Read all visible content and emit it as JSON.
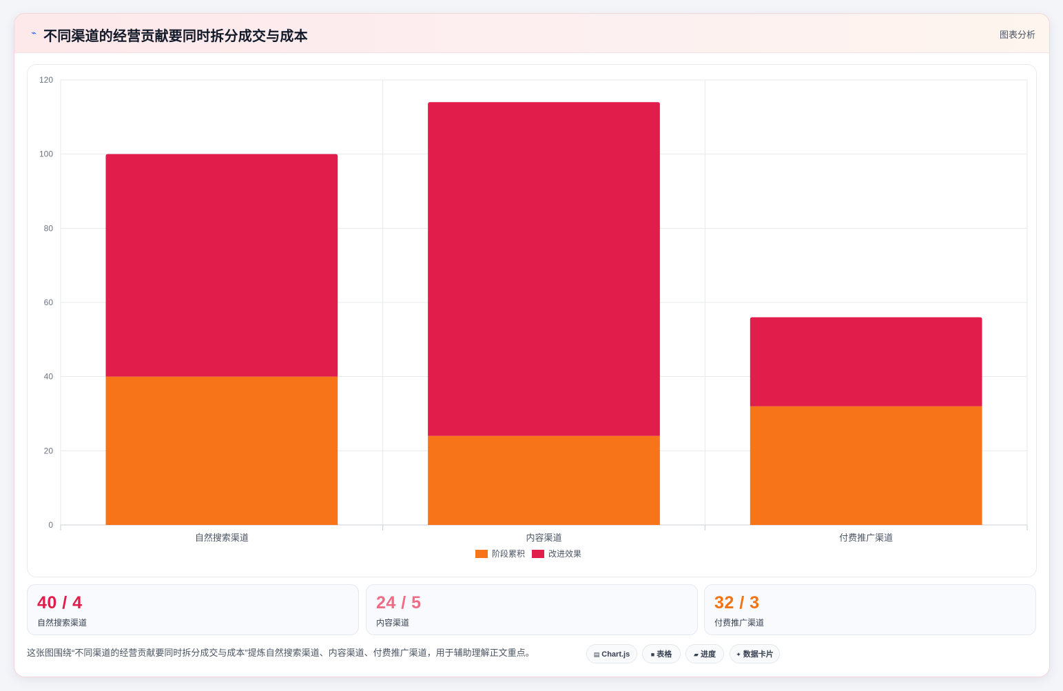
{
  "header": {
    "icon": "pulse-icon",
    "title": "不同渠道的经营贡献要同时拆分成交与成本",
    "tag": "图表分析"
  },
  "chart_data": {
    "type": "bar",
    "stacked": true,
    "categories": [
      "自然搜索渠道",
      "内容渠道",
      "付费推广渠道"
    ],
    "series": [
      {
        "name": "阶段累积",
        "values": [
          40,
          24,
          32
        ],
        "color": "#f77518"
      },
      {
        "name": "改进效果",
        "values": [
          60,
          90,
          24
        ],
        "color": "#e01d4b"
      }
    ],
    "ylim": [
      0,
      120
    ],
    "yticks": [
      0,
      20,
      40,
      60,
      80,
      100,
      120
    ],
    "grid": true,
    "legend": "bottom"
  },
  "stats": [
    {
      "value": "40 / 4",
      "label": "自然搜索渠道",
      "color": "#e01d4b"
    },
    {
      "value": "24 / 5",
      "label": "内容渠道",
      "color": "#f26b85"
    },
    {
      "value": "32 / 3",
      "label": "付费推广渠道",
      "color": "#f07314"
    }
  ],
  "footer": {
    "text": "这张图围绕“不同渠道的经营贡献要同时拆分成交与成本”提炼自然搜索渠道、内容渠道、付费推广渠道，用于辅助理解正文重点。",
    "chips": [
      {
        "icon": "chart-icon",
        "glyph": "▤",
        "label": "Chart.js"
      },
      {
        "icon": "table-icon",
        "glyph": "■",
        "label": "表格"
      },
      {
        "icon": "progress-icon",
        "glyph": "▰",
        "label": "进度"
      },
      {
        "icon": "data-card-icon",
        "glyph": "✦",
        "label": "数据卡片"
      }
    ]
  }
}
